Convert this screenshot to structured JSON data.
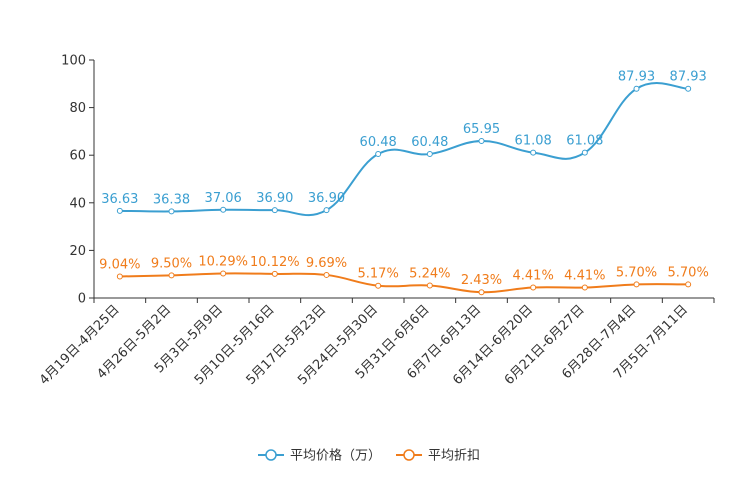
{
  "chart_data": {
    "type": "line",
    "title": "",
    "xlabel": "",
    "ylabel": "",
    "ylim": [
      0,
      100
    ],
    "yticks": [
      0,
      20,
      40,
      60,
      80,
      100
    ],
    "grid": false,
    "legend_position": "bottom-center",
    "categories": [
      "4月19日-4月25日",
      "4月26日-5月2日",
      "5月3日-5月9日",
      "5月10日-5月16日",
      "5月17日-5月23日",
      "5月24日-5月30日",
      "5月31日-6月6日",
      "6月7日-6月13日",
      "6月14日-6月20日",
      "6月21日-6月27日",
      "6月28日-7月4日",
      "7月5日-7月11日"
    ],
    "series": [
      {
        "name": "平均价格（万）",
        "color": "#3b9fd1",
        "values": [
          36.63,
          36.38,
          37.06,
          36.9,
          36.9,
          60.48,
          60.48,
          65.95,
          61.08,
          61.08,
          87.93,
          87.93
        ],
        "labels": [
          "36.63",
          "36.38",
          "37.06",
          "36.90",
          "36.90",
          "60.48",
          "60.48",
          "65.95",
          "61.08",
          "61.08",
          "87.93",
          "87.93"
        ]
      },
      {
        "name": "平均折扣",
        "color": "#f07c1b",
        "values": [
          9.04,
          9.5,
          10.29,
          10.12,
          9.69,
          5.17,
          5.24,
          2.43,
          4.41,
          4.41,
          5.7,
          5.7
        ],
        "labels": [
          "9.04%",
          "9.50%",
          "10.29%",
          "10.12%",
          "9.69%",
          "5.17%",
          "5.24%",
          "2.43%",
          "4.41%",
          "4.41%",
          "5.70%",
          "5.70%"
        ]
      }
    ]
  }
}
